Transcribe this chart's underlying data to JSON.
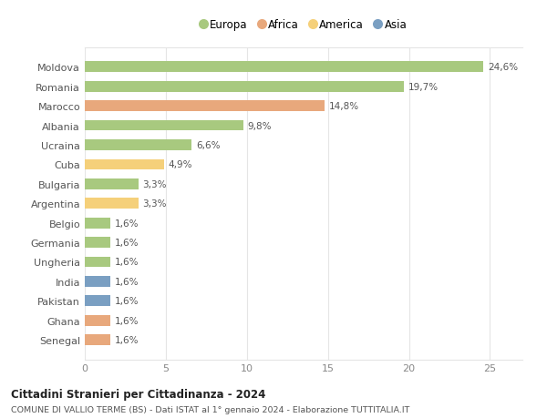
{
  "countries": [
    "Moldova",
    "Romania",
    "Marocco",
    "Albania",
    "Ucraina",
    "Cuba",
    "Bulgaria",
    "Argentina",
    "Belgio",
    "Germania",
    "Ungheria",
    "India",
    "Pakistan",
    "Ghana",
    "Senegal"
  ],
  "values": [
    24.6,
    19.7,
    14.8,
    9.8,
    6.6,
    4.9,
    3.3,
    3.3,
    1.6,
    1.6,
    1.6,
    1.6,
    1.6,
    1.6,
    1.6
  ],
  "labels": [
    "24,6%",
    "19,7%",
    "14,8%",
    "9,8%",
    "6,6%",
    "4,9%",
    "3,3%",
    "3,3%",
    "1,6%",
    "1,6%",
    "1,6%",
    "1,6%",
    "1,6%",
    "1,6%",
    "1,6%"
  ],
  "continents": [
    "Europa",
    "Europa",
    "Africa",
    "Europa",
    "Europa",
    "America",
    "Europa",
    "America",
    "Europa",
    "Europa",
    "Europa",
    "Asia",
    "Asia",
    "Africa",
    "Africa"
  ],
  "colors": {
    "Europa": "#a8c97f",
    "Africa": "#e8a87c",
    "America": "#f5d07a",
    "Asia": "#7a9fc2"
  },
  "xlim": [
    0,
    27
  ],
  "xticks": [
    0,
    5,
    10,
    15,
    20,
    25
  ],
  "title": "Cittadini Stranieri per Cittadinanza - 2024",
  "subtitle": "COMUNE DI VALLIO TERME (BS) - Dati ISTAT al 1° gennaio 2024 - Elaborazione TUTTITALIA.IT",
  "bg_color": "#ffffff",
  "grid_color": "#e5e5e5",
  "bar_height": 0.55,
  "legend_order": [
    "Europa",
    "Africa",
    "America",
    "Asia"
  ]
}
